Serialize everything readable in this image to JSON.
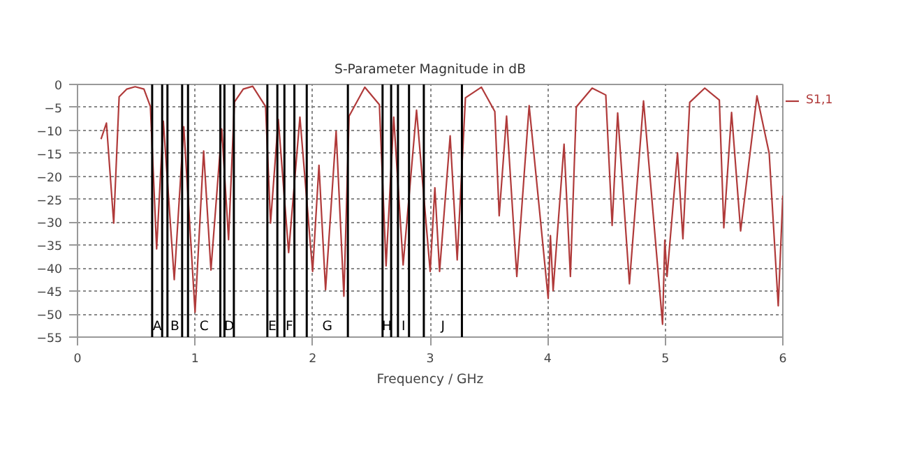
{
  "chart_data": {
    "type": "line",
    "title": "S-Parameter Magnitude in dB",
    "xlabel": "Frequency / GHz",
    "xlim": [
      0,
      6
    ],
    "xticks": [
      0,
      1,
      2,
      3,
      4,
      5,
      6
    ],
    "ylim": [
      -55,
      0
    ],
    "yticks": [
      0,
      -5,
      -10,
      -15,
      -20,
      -25,
      -30,
      -35,
      -40,
      -45,
      -50,
      -55
    ],
    "grid": true,
    "legend": "top right",
    "line_style": "solid",
    "series": [
      {
        "name": "S1,1",
        "color": "#b03a3a",
        "x": [
          0.2,
          0.246,
          0.308,
          0.354,
          0.42,
          0.49,
          0.565,
          0.62,
          0.673,
          0.73,
          0.823,
          0.904,
          1.0,
          1.073,
          1.135,
          1.227,
          1.285,
          1.335,
          1.41,
          1.49,
          1.6,
          1.642,
          1.708,
          1.796,
          1.892,
          2.0,
          2.054,
          2.11,
          2.2,
          2.266,
          2.31,
          2.444,
          2.568,
          2.625,
          2.69,
          2.77,
          2.884,
          3.0,
          3.04,
          3.08,
          3.17,
          3.23,
          3.3,
          3.436,
          3.55,
          3.587,
          3.65,
          3.737,
          3.842,
          4.004,
          4.023,
          4.046,
          4.139,
          4.193,
          4.243,
          4.378,
          4.494,
          4.548,
          4.595,
          4.695,
          4.815,
          4.977,
          4.996,
          5.015,
          5.104,
          5.15,
          5.208,
          5.336,
          5.46,
          5.498,
          5.564,
          5.641,
          5.78,
          5.884,
          5.961,
          6.0
        ],
        "values": [
          -11.9,
          -8.4,
          -30.2,
          -2.7,
          -1.0,
          -0.5,
          -1.0,
          -4.8,
          -35.8,
          -8.0,
          -42.5,
          -9.2,
          -49.6,
          -14.5,
          -40.4,
          -9.7,
          -33.8,
          -3.8,
          -1.0,
          -0.4,
          -4.8,
          -30.2,
          -7.6,
          -36.6,
          -7.1,
          -40.7,
          -17.6,
          -44.7,
          -10.2,
          -46.1,
          -6.9,
          -0.6,
          -4.4,
          -39.5,
          -7.1,
          -39.3,
          -5.6,
          -40.7,
          -22.5,
          -40.7,
          -11.2,
          -38.2,
          -2.9,
          -0.6,
          -5.9,
          -28.6,
          -6.9,
          -41.8,
          -4.6,
          -46.6,
          -32.9,
          -44.9,
          -13.0,
          -41.8,
          -4.9,
          -0.8,
          -2.3,
          -30.7,
          -6.2,
          -43.4,
          -3.6,
          -52.2,
          -33.9,
          -41.8,
          -14.9,
          -33.6,
          -3.9,
          -0.8,
          -3.4,
          -31.2,
          -6.1,
          -31.9,
          -2.5,
          -15.0,
          -48.2,
          -24.2
        ]
      }
    ],
    "ref_lines": [
      {
        "axis": "x",
        "value": 0.635,
        "color": "#000000"
      },
      {
        "axis": "x",
        "value": 0.72,
        "color": "#000000"
      },
      {
        "axis": "x",
        "value": 0.765,
        "color": "#000000"
      },
      {
        "axis": "x",
        "value": 0.89,
        "color": "#000000"
      },
      {
        "axis": "x",
        "value": 0.94,
        "color": "#000000"
      },
      {
        "axis": "x",
        "value": 1.215,
        "color": "#000000"
      },
      {
        "axis": "x",
        "value": 1.25,
        "color": "#000000"
      },
      {
        "axis": "x",
        "value": 1.33,
        "color": "#000000"
      },
      {
        "axis": "x",
        "value": 1.615,
        "color": "#000000"
      },
      {
        "axis": "x",
        "value": 1.7,
        "color": "#000000"
      },
      {
        "axis": "x",
        "value": 1.76,
        "color": "#000000"
      },
      {
        "axis": "x",
        "value": 1.845,
        "color": "#000000"
      },
      {
        "axis": "x",
        "value": 1.95,
        "color": "#000000"
      },
      {
        "axis": "x",
        "value": 2.3,
        "color": "#000000"
      },
      {
        "axis": "x",
        "value": 2.595,
        "color": "#000000"
      },
      {
        "axis": "x",
        "value": 2.668,
        "color": "#000000"
      },
      {
        "axis": "x",
        "value": 2.726,
        "color": "#000000"
      },
      {
        "axis": "x",
        "value": 2.82,
        "color": "#000000"
      },
      {
        "axis": "x",
        "value": 2.946,
        "color": "#000000"
      },
      {
        "axis": "x",
        "value": 3.27,
        "color": "#000000"
      }
    ],
    "annotations": [
      "A",
      "B",
      "C",
      "D",
      "E",
      "F",
      "G",
      "H",
      "I",
      "J"
    ]
  }
}
